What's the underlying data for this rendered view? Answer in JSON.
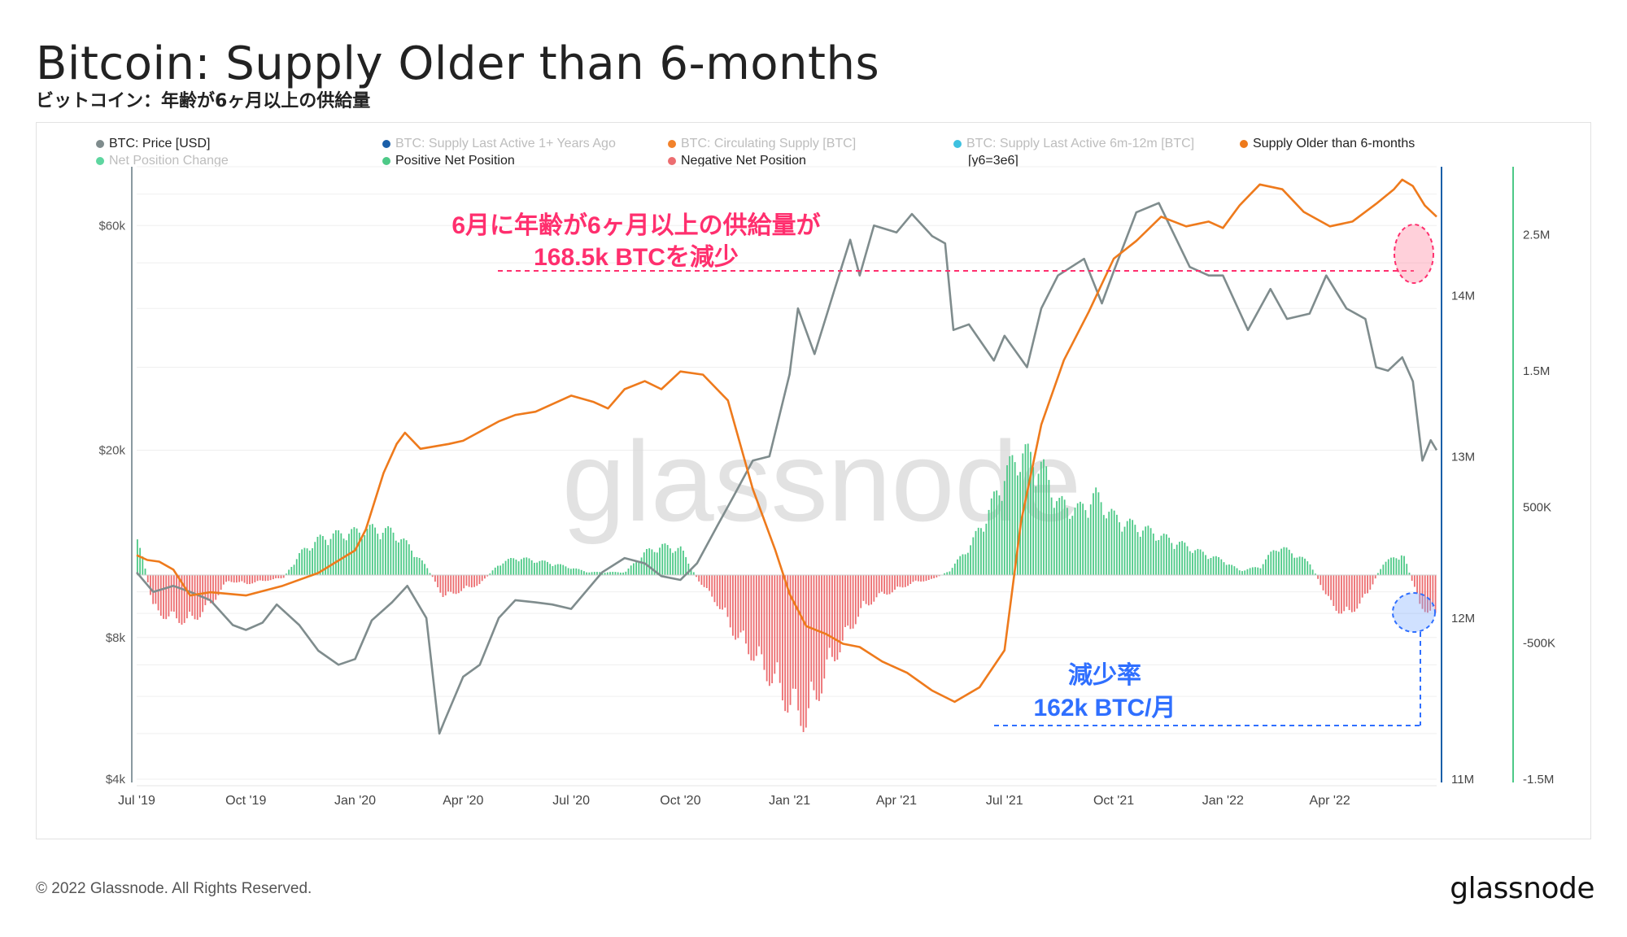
{
  "title": "Bitcoin: Supply Older than 6-months",
  "subtitle": "ビットコイン：年齢が6ヶ月以上の供給量",
  "footer": "© 2022 Glassnode. All Rights Reserved.",
  "brand": "glassnode",
  "watermark": "glassnode",
  "legend": {
    "row1": [
      {
        "label": "BTC: Price [USD]",
        "color": "#7f8c8d",
        "active": true
      },
      {
        "label": "BTC: Supply Last Active 1+ Years Ago",
        "color": "#1a5fa8",
        "active": false
      },
      {
        "label": "BTC: Circulating Supply [BTC]",
        "color": "#f2822b",
        "active": false
      },
      {
        "label": "BTC: Supply Last Active 6m-12m [BTC]",
        "color": "#3ec1e0",
        "active": false
      },
      {
        "label": "Supply Older than 6-months",
        "color": "#ee7a1c",
        "active": true
      }
    ],
    "row2": [
      {
        "label": "Net Position Change",
        "color": "#5ed6a0",
        "active": false
      },
      {
        "label": "Positive Net Position",
        "color": "#4dc987",
        "active": true
      },
      {
        "label": "Negative Net Position",
        "color": "#ec6d70",
        "active": true
      },
      {
        "label": "[y6=3e6]",
        "color": "",
        "active": true
      }
    ]
  },
  "annotations": {
    "top_line1": "6月に年齢が6ヶ月以上の供給量が",
    "top_line2": "168.5k BTCを減少",
    "bottom_line1": "減少率",
    "bottom_line2": "162k BTC/月",
    "top_color": "#ff2f6e",
    "bottom_color": "#2f6fff"
  },
  "chart_data": {
    "type": "line",
    "x_ticks": [
      "Jul '19",
      "Oct '19",
      "Jan '20",
      "Apr '20",
      "Jul '20",
      "Oct '20",
      "Jan '21",
      "Apr '21",
      "Jul '21",
      "Oct '21",
      "Jan '22",
      "Apr '22"
    ],
    "price_axis": {
      "scale": "log",
      "ticks": [
        "$4k",
        "$8k",
        "$20k",
        "$60k"
      ],
      "range": [
        4000,
        80000
      ]
    },
    "supply_axis": {
      "ticks": [
        "11M",
        "12M",
        "13M",
        "14M"
      ],
      "range": [
        11000000,
        14800000
      ]
    },
    "net_axis": {
      "ticks": [
        "-1.5M",
        "-500K",
        "500K",
        "1.5M",
        "2.5M"
      ],
      "range": [
        -1500000,
        3000000
      ]
    },
    "series": [
      {
        "name": "BTC: Price [USD]",
        "color": "#7f8c8d",
        "x": [
          "2019-07-01",
          "2019-07-15",
          "2019-08-01",
          "2019-08-15",
          "2019-09-01",
          "2019-09-20",
          "2019-10-01",
          "2019-10-15",
          "2019-10-27",
          "2019-11-15",
          "2019-12-01",
          "2019-12-18",
          "2020-01-01",
          "2020-01-15",
          "2020-02-01",
          "2020-02-14",
          "2020-03-01",
          "2020-03-12",
          "2020-03-16",
          "2020-04-01",
          "2020-04-15",
          "2020-05-01",
          "2020-05-15",
          "2020-06-01",
          "2020-06-15",
          "2020-07-01",
          "2020-07-27",
          "2020-08-15",
          "2020-09-01",
          "2020-09-15",
          "2020-10-01",
          "2020-10-15",
          "2020-11-01",
          "2020-11-15",
          "2020-12-01",
          "2020-12-15",
          "2021-01-01",
          "2021-01-08",
          "2021-01-22",
          "2021-02-08",
          "2021-02-21",
          "2021-03-01",
          "2021-03-13",
          "2021-04-01",
          "2021-04-14",
          "2021-05-01",
          "2021-05-12",
          "2021-05-19",
          "2021-06-01",
          "2021-06-22",
          "2021-07-01",
          "2021-07-20",
          "2021-08-01",
          "2021-08-15",
          "2021-09-06",
          "2021-09-21",
          "2021-10-01",
          "2021-10-20",
          "2021-11-08",
          "2021-11-20",
          "2021-12-04",
          "2021-12-20",
          "2022-01-01",
          "2022-01-22",
          "2022-02-10",
          "2022-02-24",
          "2022-03-15",
          "2022-03-29",
          "2022-04-15",
          "2022-05-01",
          "2022-05-10",
          "2022-05-20",
          "2022-06-01",
          "2022-06-10",
          "2022-06-18",
          "2022-06-25",
          "2022-06-30"
        ],
        "values": [
          11000,
          10000,
          10300,
          10000,
          9600,
          8500,
          8300,
          8600,
          9400,
          8500,
          7500,
          7000,
          7200,
          8700,
          9500,
          10300,
          8800,
          5000,
          5300,
          6600,
          7000,
          8800,
          9600,
          9500,
          9400,
          9200,
          11000,
          11800,
          11500,
          10800,
          10600,
          11500,
          13800,
          16000,
          19000,
          19400,
          29000,
          40000,
          32000,
          44000,
          56000,
          47000,
          60000,
          58000,
          63500,
          57000,
          55000,
          36000,
          37000,
          31000,
          35000,
          30000,
          40000,
          47000,
          51000,
          41000,
          48000,
          64000,
          67000,
          58000,
          49000,
          47000,
          47000,
          36000,
          44000,
          38000,
          39000,
          47000,
          40000,
          38000,
          30000,
          29500,
          31500,
          28000,
          19000,
          21000,
          20000
        ]
      },
      {
        "name": "Supply Older than 6-months",
        "color": "#ee7a1c",
        "x": [
          "2019-07-01",
          "2019-07-10",
          "2019-07-20",
          "2019-08-01",
          "2019-08-15",
          "2019-09-01",
          "2019-10-01",
          "2019-11-01",
          "2019-12-01",
          "2020-01-01",
          "2020-01-10",
          "2020-01-25",
          "2020-02-05",
          "2020-02-12",
          "2020-02-25",
          "2020-03-20",
          "2020-04-01",
          "2020-05-01",
          "2020-05-15",
          "2020-06-01",
          "2020-07-01",
          "2020-07-20",
          "2020-08-01",
          "2020-08-15",
          "2020-09-01",
          "2020-09-15",
          "2020-10-01",
          "2020-10-20",
          "2020-11-10",
          "2020-12-01",
          "2020-12-20",
          "2021-01-01",
          "2021-01-15",
          "2021-02-01",
          "2021-02-15",
          "2021-03-01",
          "2021-03-20",
          "2021-04-10",
          "2021-05-01",
          "2021-05-20",
          "2021-06-10",
          "2021-07-01",
          "2021-07-15",
          "2021-08-01",
          "2021-08-20",
          "2021-09-10",
          "2021-10-01",
          "2021-10-20",
          "2021-11-10",
          "2021-12-01",
          "2021-12-20",
          "2022-01-01",
          "2022-01-15",
          "2022-02-01",
          "2022-02-20",
          "2022-03-10",
          "2022-04-01",
          "2022-04-20",
          "2022-05-10",
          "2022-05-25",
          "2022-06-01",
          "2022-06-10",
          "2022-06-20",
          "2022-06-30"
        ],
        "values": [
          12390,
          12360,
          12350,
          12300,
          12140,
          12160,
          12140,
          12200,
          12280,
          12420,
          12550,
          12900,
          13080,
          13150,
          13050,
          13080,
          13100,
          13220,
          13260,
          13280,
          13380,
          13340,
          13300,
          13420,
          13470,
          13420,
          13530,
          13510,
          13350,
          12800,
          12420,
          12150,
          11950,
          11900,
          11840,
          11820,
          11730,
          11660,
          11550,
          11480,
          11570,
          11800,
          12600,
          13200,
          13600,
          13900,
          14230,
          14340,
          14490,
          14430,
          14460,
          14420,
          14560,
          14690,
          14660,
          14520,
          14430,
          14460,
          14570,
          14660,
          14720,
          14680,
          14560,
          14490
        ]
      }
    ],
    "net_position": {
      "name": "Net Position Change",
      "positive_color": "#4dc987",
      "negative_color": "#ec6d70",
      "x": [
        "2019-07-01",
        "2019-07-15",
        "2019-08-01",
        "2019-08-15",
        "2019-09-01",
        "2019-09-15",
        "2019-10-01",
        "2019-10-15",
        "2019-11-01",
        "2019-11-15",
        "2019-12-01",
        "2019-12-15",
        "2020-01-01",
        "2020-01-15",
        "2020-02-01",
        "2020-02-15",
        "2020-03-01",
        "2020-03-15",
        "2020-04-01",
        "2020-04-15",
        "2020-05-01",
        "2020-05-15",
        "2020-06-01",
        "2020-06-15",
        "2020-07-01",
        "2020-07-15",
        "2020-08-01",
        "2020-08-15",
        "2020-09-01",
        "2020-09-15",
        "2020-10-01",
        "2020-10-15",
        "2020-11-01",
        "2020-11-15",
        "2020-12-01",
        "2020-12-15",
        "2021-01-01",
        "2021-01-15",
        "2021-02-01",
        "2021-02-15",
        "2021-03-01",
        "2021-03-15",
        "2021-04-01",
        "2021-04-15",
        "2021-05-01",
        "2021-05-15",
        "2021-06-01",
        "2021-06-15",
        "2021-07-01",
        "2021-07-15",
        "2021-08-01",
        "2021-08-15",
        "2021-09-01",
        "2021-09-15",
        "2021-10-01",
        "2021-10-15",
        "2021-11-01",
        "2021-11-15",
        "2021-12-01",
        "2021-12-15",
        "2022-01-01",
        "2022-01-15",
        "2022-02-01",
        "2022-02-15",
        "2022-03-01",
        "2022-03-15",
        "2022-04-01",
        "2022-04-15",
        "2022-05-01",
        "2022-05-15",
        "2022-06-01",
        "2022-06-15",
        "2022-06-30"
      ],
      "values": [
        300000,
        -250000,
        -300000,
        -320000,
        -200000,
        -40000,
        -60000,
        -40000,
        -20000,
        150000,
        250000,
        280000,
        300000,
        320000,
        300000,
        200000,
        50000,
        -150000,
        -100000,
        -60000,
        80000,
        120000,
        100000,
        80000,
        50000,
        20000,
        20000,
        20000,
        160000,
        200000,
        180000,
        -30000,
        -200000,
        -400000,
        -550000,
        -700000,
        -900000,
        -1000000,
        -650000,
        -450000,
        -250000,
        -150000,
        -100000,
        -50000,
        -30000,
        30000,
        200000,
        400000,
        700000,
        850000,
        750000,
        500000,
        450000,
        550000,
        400000,
        350000,
        300000,
        250000,
        200000,
        150000,
        100000,
        30000,
        60000,
        200000,
        150000,
        80000,
        -200000,
        -280000,
        -150000,
        80000,
        150000,
        -200000,
        -300000
      ]
    }
  }
}
